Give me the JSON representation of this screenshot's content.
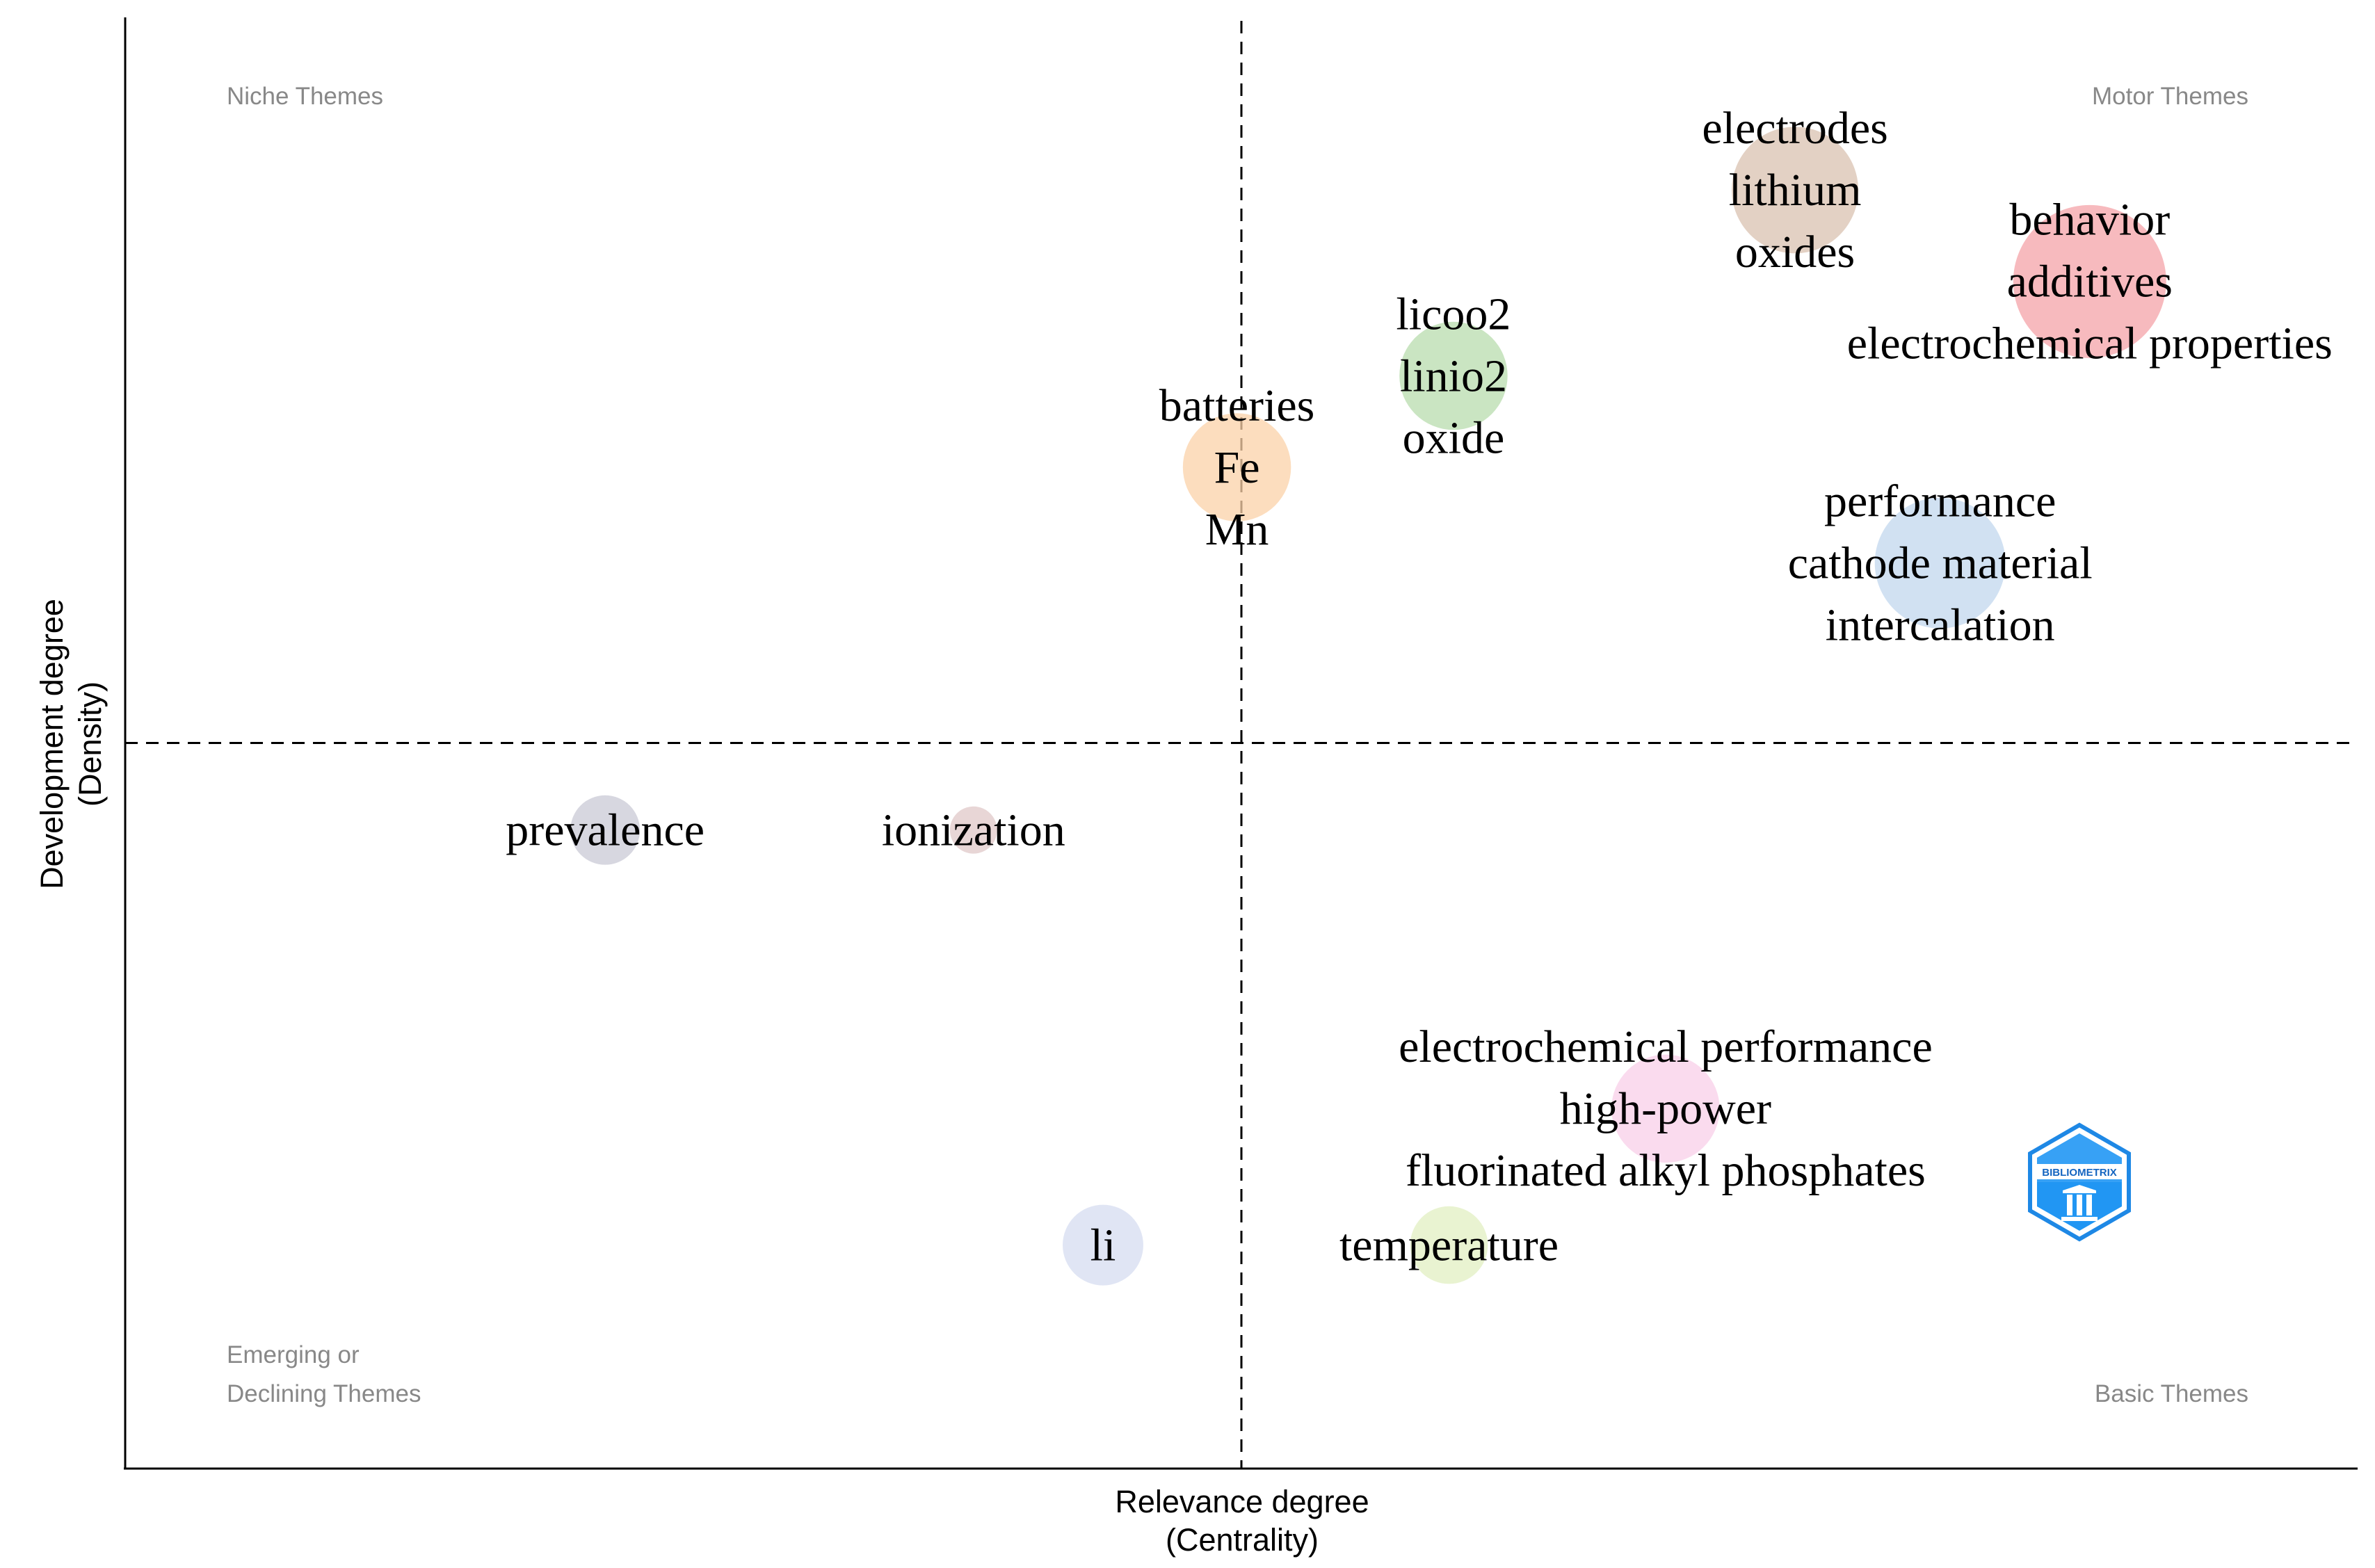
{
  "chart_data": {
    "type": "scatter",
    "title": "",
    "xlabel_lines": [
      "Relevance degree",
      "(Centrality)"
    ],
    "ylabel_lines": [
      "Development degree",
      "(Density)"
    ],
    "xlim": [
      0,
      1
    ],
    "ylim": [
      0,
      1
    ],
    "reference_lines": {
      "x": 0.5,
      "y": 0.5,
      "style": "dashed"
    },
    "quadrant_labels": {
      "top_left": [
        "Niche Themes"
      ],
      "top_right": [
        "Motor Themes"
      ],
      "bottom_left": [
        "Emerging or",
        "Declining Themes"
      ],
      "bottom_right": [
        "Basic Themes"
      ]
    },
    "clusters": [
      {
        "terms": [
          "electrodes",
          "lithium",
          "oxides"
        ],
        "x": 0.748,
        "y": 0.881,
        "size": 0.65,
        "color": "#d9c2b0"
      },
      {
        "terms": [
          "behavior",
          "additives",
          "electrochemical properties"
        ],
        "x": 0.88,
        "y": 0.818,
        "size": 1.0,
        "color": "#f4a3a8"
      },
      {
        "terms": [
          "licoo2",
          "linio2",
          "oxide"
        ],
        "x": 0.595,
        "y": 0.753,
        "size": 0.45,
        "color": "#b8dcae"
      },
      {
        "terms": [
          "batteries",
          "Fe",
          "Mn"
        ],
        "x": 0.498,
        "y": 0.69,
        "size": 0.45,
        "color": "#fbd2a8"
      },
      {
        "terms": [
          "performance",
          "cathode material",
          "intercalation"
        ],
        "x": 0.813,
        "y": 0.624,
        "size": 0.7,
        "color": "#c2d7ee"
      },
      {
        "terms": [
          "prevalence"
        ],
        "x": 0.215,
        "y": 0.44,
        "size": 0.15,
        "color": "#c9c9d6"
      },
      {
        "terms": [
          "ionization"
        ],
        "x": 0.38,
        "y": 0.44,
        "size": 0.05,
        "color": "#e0c8c8"
      },
      {
        "terms": [
          "electrochemical performance",
          "high-power",
          "fluorinated alkyl phosphates"
        ],
        "x": 0.69,
        "y": 0.248,
        "size": 0.45,
        "color": "#f8cfe8"
      },
      {
        "terms": [
          "li"
        ],
        "x": 0.438,
        "y": 0.154,
        "size": 0.22,
        "color": "#d5dcf0"
      },
      {
        "terms": [
          "temperature"
        ],
        "x": 0.593,
        "y": 0.154,
        "size": 0.2,
        "color": "#e2efc2"
      }
    ],
    "logo": {
      "text": "BIBLIOMETRIX",
      "color": "#1e88e5"
    }
  }
}
